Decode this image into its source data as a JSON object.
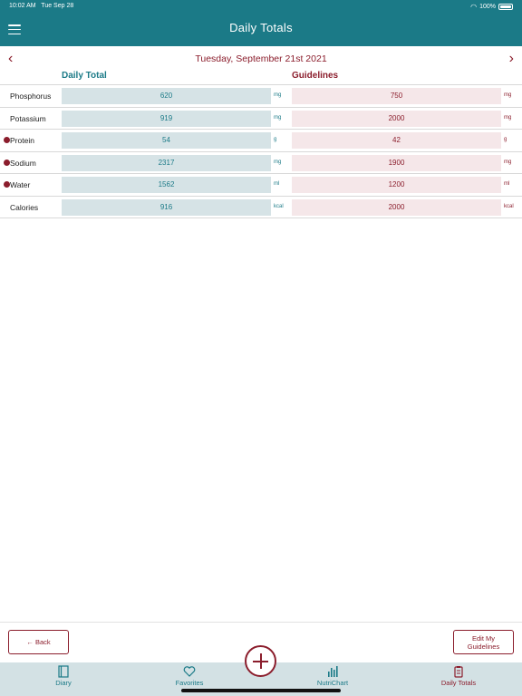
{
  "status_bar": {
    "time": "10:02 AM",
    "date": "Tue Sep 28",
    "battery": "100%"
  },
  "header": {
    "title": "Daily Totals"
  },
  "date_nav": {
    "date": "Tuesday, September 21st 2021"
  },
  "columns": {
    "total": "Daily Total",
    "guidelines": "Guidelines"
  },
  "rows": [
    {
      "name": "Phosphorus",
      "flag": false,
      "total": "620",
      "total_unit": "mg",
      "guide": "750",
      "guide_unit": "mg"
    },
    {
      "name": "Potassium",
      "flag": false,
      "total": "919",
      "total_unit": "mg",
      "guide": "2000",
      "guide_unit": "mg"
    },
    {
      "name": "Protein",
      "flag": true,
      "total": "54",
      "total_unit": "g",
      "guide": "42",
      "guide_unit": "g"
    },
    {
      "name": "Sodium",
      "flag": true,
      "total": "2317",
      "total_unit": "mg",
      "guide": "1900",
      "guide_unit": "mg"
    },
    {
      "name": "Water",
      "flag": true,
      "total": "1562",
      "total_unit": "ml",
      "guide": "1200",
      "guide_unit": "ml"
    },
    {
      "name": "Calories",
      "flag": false,
      "total": "916",
      "total_unit": "kcal",
      "guide": "2000",
      "guide_unit": "kcal"
    }
  ],
  "buttons": {
    "back": "← Back",
    "edit_line1": "Edit My",
    "edit_line2": "Guidelines"
  },
  "tabs": {
    "diary": "Diary",
    "favorites": "Favorites",
    "nutrichart": "NutriChart",
    "daily_totals": "Daily Totals"
  },
  "colors": {
    "teal": "#1b7a87",
    "maroon": "#8b1d2c",
    "total_fill": "#d6e3e6",
    "guide_fill": "#f5e7e9"
  }
}
